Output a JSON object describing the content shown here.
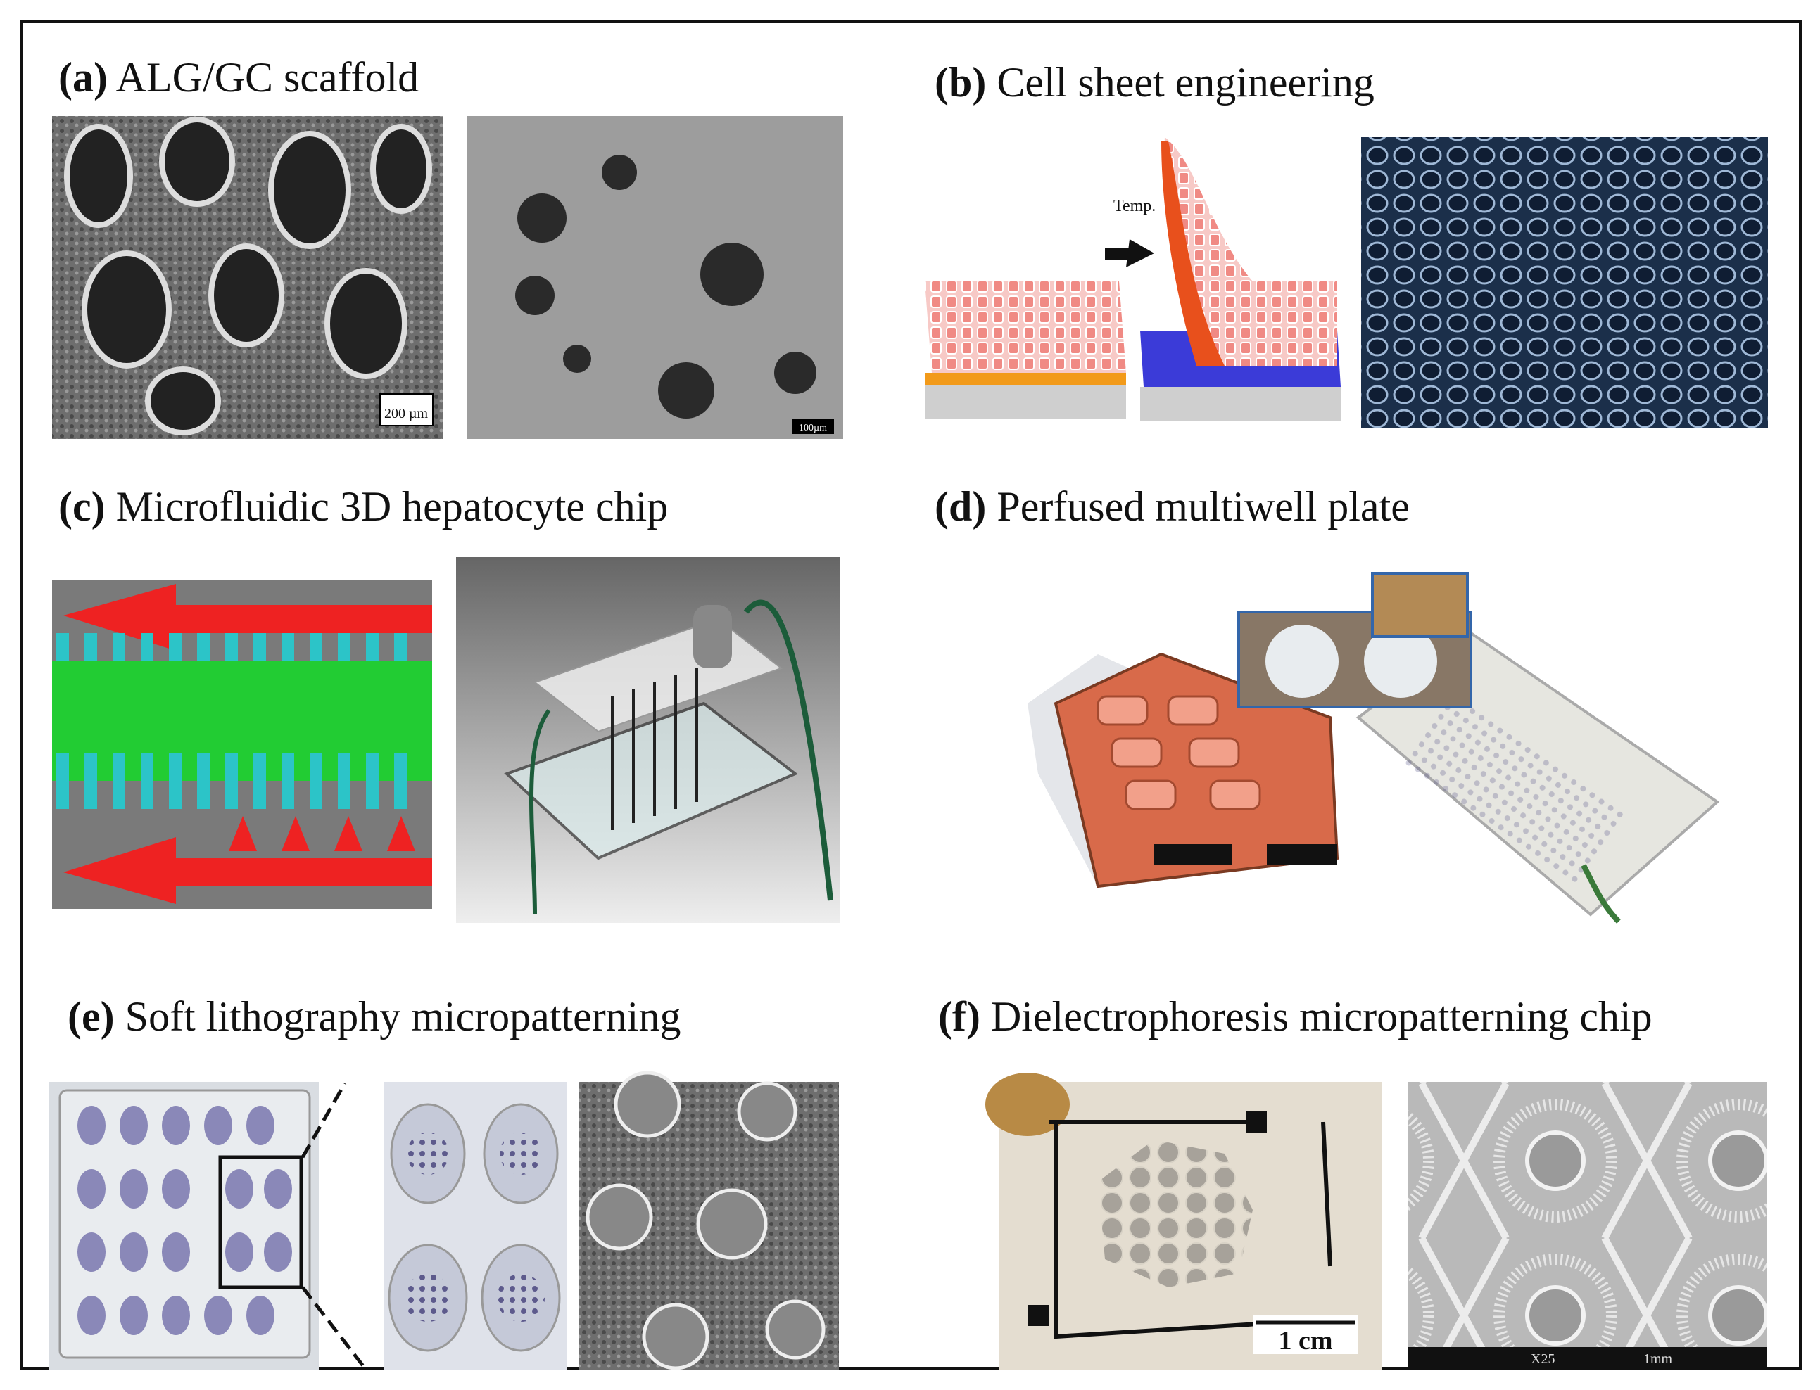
{
  "panels": [
    {
      "letter": "(a)",
      "title": "ALG/GC scaffold",
      "annotations": [
        "200 µm",
        "100µm"
      ]
    },
    {
      "letter": "(b)",
      "title": "Cell sheet engineering",
      "annotations": [
        "Temp."
      ]
    },
    {
      "letter": "(c)",
      "title": "Microfluidic 3D hepatocyte chip"
    },
    {
      "letter": "(d)",
      "title": "Perfused multiwell plate"
    },
    {
      "letter": "(e)",
      "title": "Soft lithography micropatterning"
    },
    {
      "letter": "(f)",
      "title": "Dielectrophoresis micropatterning chip",
      "annotations": [
        "1 cm",
        "X25",
        "1mm"
      ]
    }
  ]
}
